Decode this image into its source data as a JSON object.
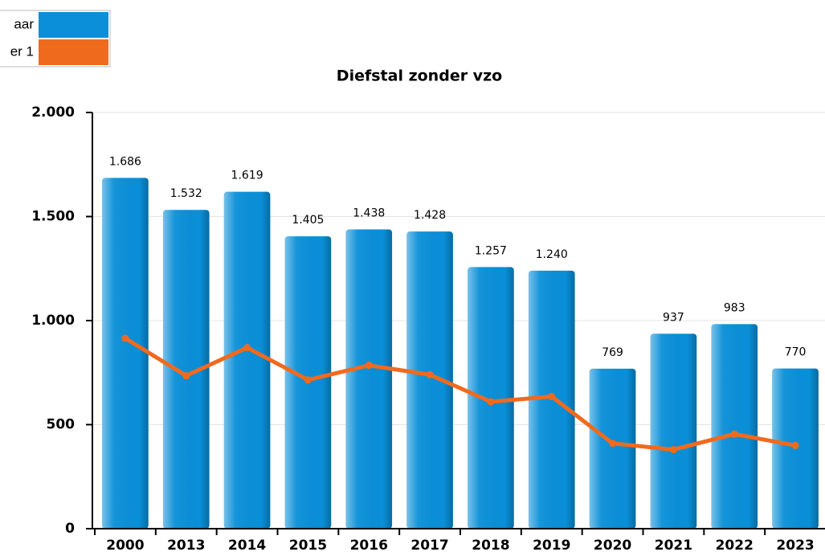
{
  "chart_data": {
    "type": "bar-line",
    "title": "Diefstal zonder vzo",
    "categories": [
      "2000",
      "2013",
      "2014",
      "2015",
      "2016",
      "2017",
      "2018",
      "2019",
      "2020",
      "2021",
      "2022",
      "2023"
    ],
    "series": [
      {
        "name": "aar",
        "type": "bar",
        "color": "#0a8fd8",
        "values": [
          1686,
          1532,
          1619,
          1405,
          1438,
          1428,
          1257,
          1240,
          769,
          937,
          983,
          770
        ],
        "value_labels": [
          "1.686",
          "1.532",
          "1.619",
          "1.405",
          "1.438",
          "1.428",
          "1.257",
          "1.240",
          "769",
          "937",
          "983",
          "770"
        ]
      },
      {
        "name": "er 1",
        "type": "line",
        "color": "#f06a1e",
        "values": [
          915,
          735,
          870,
          715,
          785,
          740,
          610,
          635,
          410,
          380,
          455,
          400
        ]
      }
    ],
    "ylim": [
      0,
      2000
    ],
    "yticks": [
      {
        "value": 0,
        "label": "0"
      },
      {
        "value": 500,
        "label": "500"
      },
      {
        "value": 1000,
        "label": "1.000"
      },
      {
        "value": 1500,
        "label": "1.500"
      },
      {
        "value": 2000,
        "label": "2.000"
      }
    ],
    "grid": true
  }
}
